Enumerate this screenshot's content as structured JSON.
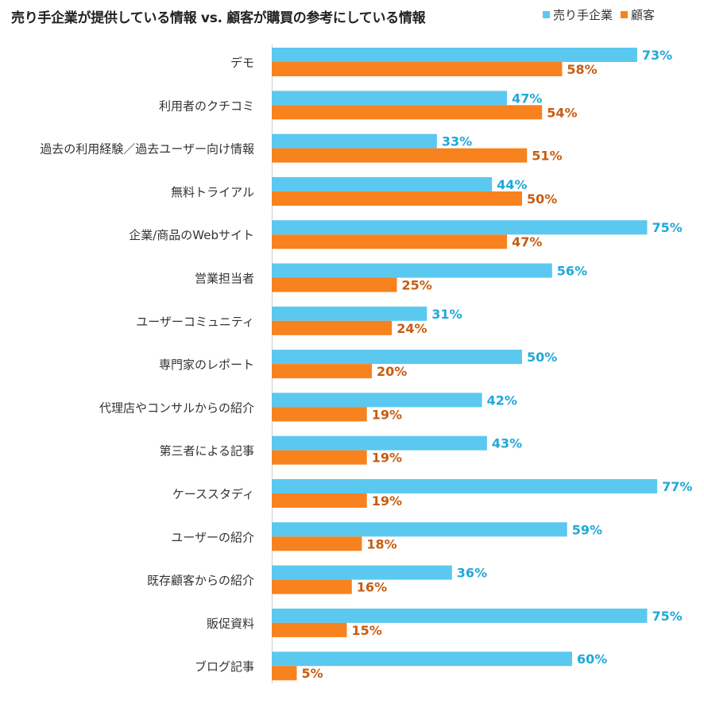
{
  "chart_data": {
    "type": "bar",
    "orientation": "horizontal",
    "title": "売り手企業が提供している情報 vs. 顧客が購買の参考にしている情報",
    "categories": [
      "デモ",
      "利用者のクチコミ",
      "過去の利用経験／過去ユーザー向け情報",
      "無料トライアル",
      "企業/商品のWebサイト",
      "営業担当者",
      "ユーザーコミュニティ",
      "専門家のレポート",
      "代理店やコンサルからの紹介",
      "第三者による記事",
      "ケーススタディ",
      "ユーザーの紹介",
      "既存顧客からの紹介",
      "販促資料",
      "ブログ記事"
    ],
    "series": [
      {
        "name": "売り手企業",
        "color": "#5bc8f0",
        "label_color": "#21a8d8",
        "values": [
          73,
          47,
          33,
          44,
          75,
          56,
          31,
          50,
          42,
          43,
          77,
          59,
          36,
          75,
          60
        ],
        "labels": [
          "73%",
          "47%",
          "33%",
          "44%",
          "75%",
          "56%",
          "31%",
          "50%",
          "42%",
          "43%",
          "77%",
          "59%",
          "36%",
          "75%",
          "60%"
        ]
      },
      {
        "name": "顧客",
        "color": "#f7821e",
        "label_color": "#c85c10",
        "values": [
          58,
          54,
          51,
          50,
          47,
          25,
          24,
          20,
          19,
          19,
          19,
          18,
          16,
          15,
          5
        ],
        "labels": [
          "58%",
          "54%",
          "51%",
          "50%",
          "47%",
          "25%",
          "24%",
          "20%",
          "19%",
          "19%",
          "19%",
          "18%",
          "16%",
          "15%",
          "5%"
        ]
      }
    ],
    "xlim": [
      0,
      100
    ],
    "legend_position": "top-right",
    "grid": false
  }
}
